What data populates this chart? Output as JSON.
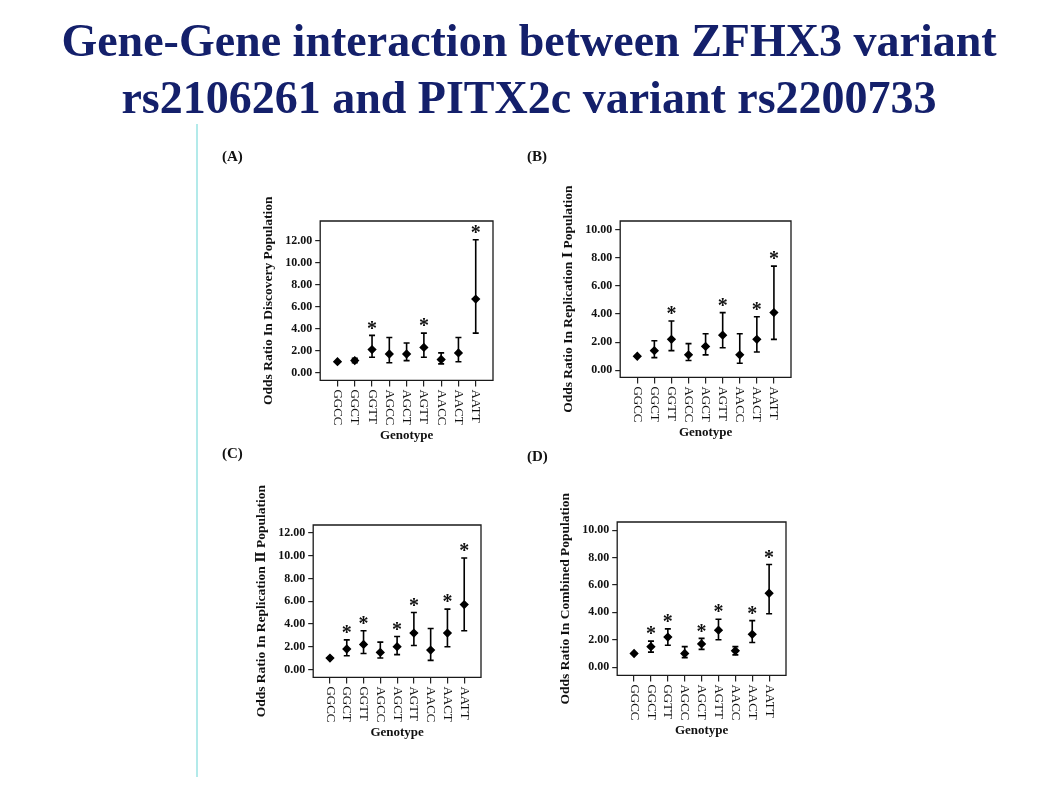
{
  "chart_data": [
    {
      "type": "scatter",
      "title": "Gene-Gene interaction between ZFHX3 variant rs2106261 and PITX2c variant rs2200733",
      "subtitle": "(A)",
      "xlabel": "Genotype",
      "ylabel": "Odds Ratio In Discovery Population",
      "categories": [
        "GGCC",
        "GGCT",
        "GGTT",
        "AGCC",
        "AGCT",
        "AGTT",
        "AACC",
        "AACT",
        "AATT"
      ],
      "values": [
        1.0,
        1.1,
        2.1,
        1.7,
        1.7,
        2.3,
        1.2,
        1.8,
        6.7
      ],
      "errors": [
        null,
        [
          0.9,
          1.3
        ],
        [
          1.4,
          3.4
        ],
        [
          0.9,
          3.2
        ],
        [
          1.1,
          2.7
        ],
        [
          1.4,
          3.6
        ],
        [
          0.8,
          1.8
        ],
        [
          1.0,
          3.2
        ],
        [
          3.6,
          12.1
        ]
      ],
      "color": "#000000",
      "marker": "diamond",
      "ylim": [
        -0.7,
        13.8
      ],
      "yticks": [
        {
          "value": 0,
          "label": "0.00"
        },
        {
          "value": 2,
          "label": "2.00"
        },
        {
          "value": 4,
          "label": "4.00"
        },
        {
          "value": 6,
          "label": "6.00"
        },
        {
          "value": 8,
          "label": "8.00"
        },
        {
          "value": 10,
          "label": "10.00"
        },
        {
          "value": 12,
          "label": "12.00"
        }
      ],
      "annotations": [
        {
          "text": "*",
          "x": "GGTT",
          "y": 2.1
        },
        {
          "text": "*",
          "x": "AGTT",
          "y": 2.3
        },
        {
          "text": "*",
          "x": "AATT",
          "y": 6.7
        }
      ]
    },
    {
      "type": "scatter",
      "subtitle": "(B)",
      "xlabel": "Genotype",
      "ylabel": "Odds Ratio In Replication Ⅰ Population",
      "categories": [
        "GGCC",
        "GGCT",
        "GGTT",
        "AGCC",
        "AGCT",
        "AGTT",
        "AACC",
        "AACT",
        "AATT"
      ],
      "values": [
        1.0,
        1.4,
        2.2,
        1.1,
        1.7,
        2.5,
        1.1,
        2.2,
        4.1
      ],
      "errors": [
        null,
        [
          0.9,
          2.1
        ],
        [
          1.4,
          3.5
        ],
        [
          0.7,
          1.9
        ],
        [
          1.1,
          2.6
        ],
        [
          1.6,
          4.1
        ],
        [
          0.5,
          2.6
        ],
        [
          1.3,
          3.8
        ],
        [
          2.2,
          7.4
        ]
      ],
      "color": "#000000",
      "marker": "diamond",
      "ylim": [
        -0.5,
        10.6
      ],
      "yticks": [
        {
          "value": 0,
          "label": "0.00"
        },
        {
          "value": 2,
          "label": "2.00"
        },
        {
          "value": 4,
          "label": "4.00"
        },
        {
          "value": 6,
          "label": "6.00"
        },
        {
          "value": 8,
          "label": "8.00"
        },
        {
          "value": 10,
          "label": "10.00"
        }
      ],
      "annotations": [
        {
          "text": "*",
          "x": "GGTT",
          "y": 2.2
        },
        {
          "text": "*",
          "x": "AGTT",
          "y": 2.5
        },
        {
          "text": "*",
          "x": "AACT",
          "y": 2.2
        },
        {
          "text": "*",
          "x": "AATT",
          "y": 4.1
        }
      ]
    },
    {
      "type": "scatter",
      "subtitle": "(C)",
      "xlabel": "Genotype",
      "ylabel": "Odds Ratio In Replication Ⅱ Population",
      "categories": [
        "GGCC",
        "GGCT",
        "GGTT",
        "AGCC",
        "AGCT",
        "AGTT",
        "AACC",
        "AACT",
        "AATT"
      ],
      "values": [
        1.0,
        1.8,
        2.2,
        1.5,
        2.0,
        3.2,
        1.7,
        3.2,
        5.7
      ],
      "errors": [
        null,
        [
          1.2,
          2.6
        ],
        [
          1.4,
          3.4
        ],
        [
          1.0,
          2.4
        ],
        [
          1.3,
          2.9
        ],
        [
          2.1,
          5.0
        ],
        [
          0.8,
          3.6
        ],
        [
          2.0,
          5.3
        ],
        [
          3.4,
          9.8
        ]
      ],
      "color": "#000000",
      "marker": "diamond",
      "ylim": [
        -0.7,
        12.7
      ],
      "yticks": [
        {
          "value": 0,
          "label": "0.00"
        },
        {
          "value": 2,
          "label": "2.00"
        },
        {
          "value": 4,
          "label": "4.00"
        },
        {
          "value": 6,
          "label": "6.00"
        },
        {
          "value": 8,
          "label": "8.00"
        },
        {
          "value": 10,
          "label": "10.00"
        },
        {
          "value": 12,
          "label": "12.00"
        }
      ],
      "annotations": [
        {
          "text": "*",
          "x": "GGCT",
          "y": 1.8
        },
        {
          "text": "*",
          "x": "GGTT",
          "y": 2.2
        },
        {
          "text": "*",
          "x": "AGCT",
          "y": 2.0
        },
        {
          "text": "*",
          "x": "AGTT",
          "y": 3.2
        },
        {
          "text": "*",
          "x": "AACT",
          "y": 3.2
        },
        {
          "text": "*",
          "x": "AATT",
          "y": 5.7
        }
      ]
    },
    {
      "type": "scatter",
      "subtitle": "(D)",
      "xlabel": "Genotype",
      "ylabel": "Odds Ratio In Combined Population",
      "categories": [
        "GGCC",
        "GGCT",
        "GGTT",
        "AGCC",
        "AGCT",
        "AGTT",
        "AACC",
        "AACT",
        "AATT"
      ],
      "values": [
        1.0,
        1.5,
        2.2,
        1.0,
        1.7,
        2.7,
        1.2,
        2.4,
        5.4
      ],
      "errors": [
        null,
        [
          1.1,
          1.9
        ],
        [
          1.6,
          2.8
        ],
        [
          0.7,
          1.5
        ],
        [
          1.3,
          2.1
        ],
        [
          2.0,
          3.5
        ],
        [
          0.9,
          1.5
        ],
        [
          1.8,
          3.4
        ],
        [
          3.9,
          7.5
        ]
      ],
      "color": "#000000",
      "marker": "diamond",
      "ylim": [
        -0.6,
        10.6
      ],
      "yticks": [
        {
          "value": 0,
          "label": "0.00"
        },
        {
          "value": 2,
          "label": "2.00"
        },
        {
          "value": 4,
          "label": "4.00"
        },
        {
          "value": 6,
          "label": "6.00"
        },
        {
          "value": 8,
          "label": "8.00"
        },
        {
          "value": 10,
          "label": "10.00"
        }
      ],
      "annotations": [
        {
          "text": "*",
          "x": "GGCT",
          "y": 1.5
        },
        {
          "text": "*",
          "x": "GGTT",
          "y": 2.2
        },
        {
          "text": "*",
          "x": "AGCT",
          "y": 1.7
        },
        {
          "text": "*",
          "x": "AGTT",
          "y": 2.7
        },
        {
          "text": "*",
          "x": "AACT",
          "y": 2.4
        },
        {
          "text": "*",
          "x": "AATT",
          "y": 5.4
        }
      ]
    }
  ]
}
